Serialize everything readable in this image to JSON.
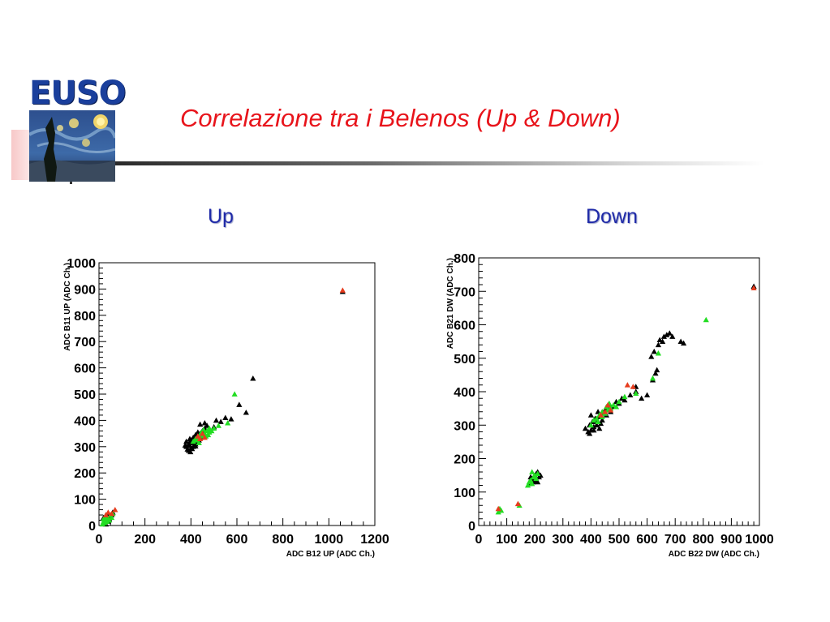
{
  "header": {
    "logo_text": "EUSO",
    "title": "Correlazione tra i Belenos (Up & Down)"
  },
  "colors": {
    "title": "#e8141b",
    "subtitle": "#1f2aa8",
    "logo": "#1a3f9c"
  },
  "chart_data": [
    {
      "type": "scatter",
      "title": "Up",
      "xlabel": "ADC B12 UP (ADC Ch.)",
      "ylabel": "ADC B11 UP (ADC Ch.)",
      "xlim": [
        0,
        1200
      ],
      "ylim": [
        0,
        1000
      ],
      "xticks": [
        0,
        200,
        400,
        600,
        800,
        1000,
        1200
      ],
      "yticks": [
        0,
        100,
        200,
        300,
        400,
        500,
        600,
        700,
        800,
        900,
        1000
      ],
      "grid": false,
      "series": [
        {
          "color": "#000000",
          "points": [
            [
              380,
              300
            ],
            [
              385,
              290
            ],
            [
              390,
              310
            ],
            [
              395,
              305
            ],
            [
              400,
              295
            ],
            [
              405,
              315
            ],
            [
              410,
              300
            ],
            [
              390,
              285
            ],
            [
              415,
              320
            ],
            [
              420,
              310
            ],
            [
              425,
              330
            ],
            [
              400,
              325
            ],
            [
              395,
              315
            ],
            [
              410,
              335
            ],
            [
              430,
              340
            ],
            [
              435,
              325
            ],
            [
              440,
              350
            ],
            [
              445,
              335
            ],
            [
              420,
              345
            ],
            [
              430,
              355
            ],
            [
              450,
              360
            ],
            [
              455,
              345
            ],
            [
              460,
              370
            ],
            [
              440,
              385
            ],
            [
              460,
              390
            ],
            [
              470,
              380
            ],
            [
              480,
              365
            ],
            [
              500,
              375
            ],
            [
              510,
              400
            ],
            [
              530,
              395
            ],
            [
              550,
              410
            ],
            [
              575,
              405
            ],
            [
              640,
              430
            ],
            [
              610,
              460
            ],
            [
              670,
              560
            ],
            [
              1060,
              890
            ],
            [
              20,
              10
            ],
            [
              25,
              20
            ],
            [
              30,
              5
            ],
            [
              35,
              30
            ],
            [
              40,
              15
            ],
            [
              45,
              25
            ],
            [
              30,
              40
            ],
            [
              50,
              35
            ],
            [
              20,
              30
            ],
            [
              40,
              45
            ],
            [
              60,
              50
            ],
            [
              55,
              40
            ],
            [
              380,
              320
            ],
            [
              375,
              305
            ],
            [
              398,
              280
            ],
            [
              405,
              292
            ],
            [
              420,
              302
            ],
            [
              395,
              330
            ],
            [
              425,
              318
            ]
          ]
        },
        {
          "color": "#22dd22",
          "points": [
            [
              410,
              320
            ],
            [
              420,
              330
            ],
            [
              430,
              335
            ],
            [
              440,
              345
            ],
            [
              450,
              340
            ],
            [
              460,
              350
            ],
            [
              470,
              360
            ],
            [
              475,
              345
            ],
            [
              480,
              355
            ],
            [
              490,
              360
            ],
            [
              445,
              355
            ],
            [
              455,
              365
            ],
            [
              465,
              340
            ],
            [
              500,
              370
            ],
            [
              520,
              380
            ],
            [
              560,
              390
            ],
            [
              590,
              500
            ],
            [
              425,
              325
            ],
            [
              435,
              315
            ],
            [
              480,
              370
            ],
            [
              15,
              5
            ],
            [
              20,
              15
            ],
            [
              25,
              10
            ],
            [
              30,
              20
            ],
            [
              35,
              15
            ],
            [
              40,
              25
            ],
            [
              45,
              20
            ],
            [
              55,
              30
            ],
            [
              60,
              45
            ],
            [
              30,
              30
            ],
            [
              20,
              25
            ],
            [
              50,
              40
            ]
          ]
        },
        {
          "color": "#e63c1e",
          "points": [
            [
              430,
              340
            ],
            [
              440,
              330
            ],
            [
              450,
              350
            ],
            [
              460,
              335
            ],
            [
              1060,
              895
            ],
            [
              40,
              50
            ],
            [
              70,
              60
            ],
            [
              30,
              40
            ],
            [
              55,
              45
            ]
          ]
        }
      ]
    },
    {
      "type": "scatter",
      "title": "Down",
      "xlabel": "ADC B22 DW (ADC Ch.)",
      "ylabel": "ADC B21 DW (ADC Ch.)",
      "xlim": [
        0,
        1000
      ],
      "ylim": [
        0,
        800
      ],
      "xticks": [
        0,
        100,
        200,
        300,
        400,
        500,
        600,
        700,
        800,
        900,
        1000
      ],
      "xtick_labels": [
        "0",
        "100",
        "200",
        "300",
        "400",
        "500",
        "600",
        "700",
        "800",
        "900",
        "1000"
      ],
      "yticks": [
        0,
        100,
        200,
        300,
        400,
        500,
        600,
        700,
        800
      ],
      "grid": false,
      "series": [
        {
          "color": "#000000",
          "points": [
            [
              380,
              290
            ],
            [
              390,
              280
            ],
            [
              395,
              300
            ],
            [
              400,
              285
            ],
            [
              405,
              310
            ],
            [
              410,
              295
            ],
            [
              415,
              320
            ],
            [
              400,
              330
            ],
            [
              420,
              310
            ],
            [
              425,
              340
            ],
            [
              430,
              325
            ],
            [
              440,
              315
            ],
            [
              445,
              335
            ],
            [
              450,
              345
            ],
            [
              455,
              330
            ],
            [
              460,
              350
            ],
            [
              465,
              360
            ],
            [
              470,
              340
            ],
            [
              480,
              355
            ],
            [
              490,
              370
            ],
            [
              500,
              365
            ],
            [
              510,
              380
            ],
            [
              520,
              375
            ],
            [
              540,
              390
            ],
            [
              560,
              400
            ],
            [
              580,
              380
            ],
            [
              600,
              390
            ],
            [
              615,
              505
            ],
            [
              625,
              520
            ],
            [
              630,
              455
            ],
            [
              635,
              465
            ],
            [
              640,
              540
            ],
            [
              645,
              555
            ],
            [
              655,
              550
            ],
            [
              660,
              565
            ],
            [
              670,
              570
            ],
            [
              680,
              575
            ],
            [
              690,
              565
            ],
            [
              720,
              550
            ],
            [
              730,
              545
            ],
            [
              980,
              715
            ],
            [
              560,
              415
            ],
            [
              620,
              435
            ],
            [
              190,
              140
            ],
            [
              195,
              130
            ],
            [
              200,
              150
            ],
            [
              205,
              155
            ],
            [
              210,
              160
            ],
            [
              215,
              145
            ],
            [
              220,
              150
            ],
            [
              200,
              135
            ],
            [
              210,
              130
            ],
            [
              180,
              125
            ],
            [
              185,
              145
            ],
            [
              420,
              300
            ],
            [
              395,
              275
            ],
            [
              410,
              285
            ],
            [
              430,
              290
            ],
            [
              435,
              305
            ]
          ]
        },
        {
          "color": "#22dd22",
          "points": [
            [
              400,
              300
            ],
            [
              410,
              315
            ],
            [
              420,
              320
            ],
            [
              430,
              330
            ],
            [
              440,
              340
            ],
            [
              450,
              335
            ],
            [
              460,
              345
            ],
            [
              470,
              350
            ],
            [
              480,
              360
            ],
            [
              490,
              355
            ],
            [
              500,
              370
            ],
            [
              440,
              325
            ],
            [
              455,
              355
            ],
            [
              520,
              385
            ],
            [
              560,
              395
            ],
            [
              620,
              440
            ],
            [
              640,
              515
            ],
            [
              810,
              615
            ],
            [
              70,
              40
            ],
            [
              75,
              50
            ],
            [
              80,
              45
            ],
            [
              175,
              120
            ],
            [
              180,
              130
            ],
            [
              185,
              135
            ],
            [
              190,
              125
            ],
            [
              195,
              145
            ],
            [
              200,
              150
            ],
            [
              205,
              140
            ],
            [
              210,
              155
            ],
            [
              190,
              160
            ],
            [
              145,
              60
            ],
            [
              425,
              310
            ],
            [
              465,
              365
            ]
          ]
        },
        {
          "color": "#e63c1e",
          "points": [
            [
              450,
              340
            ],
            [
              460,
              360
            ],
            [
              470,
              345
            ],
            [
              530,
              420
            ],
            [
              550,
              415
            ],
            [
              980,
              710
            ],
            [
              70,
              50
            ],
            [
              140,
              65
            ],
            [
              435,
              330
            ]
          ]
        }
      ]
    }
  ]
}
